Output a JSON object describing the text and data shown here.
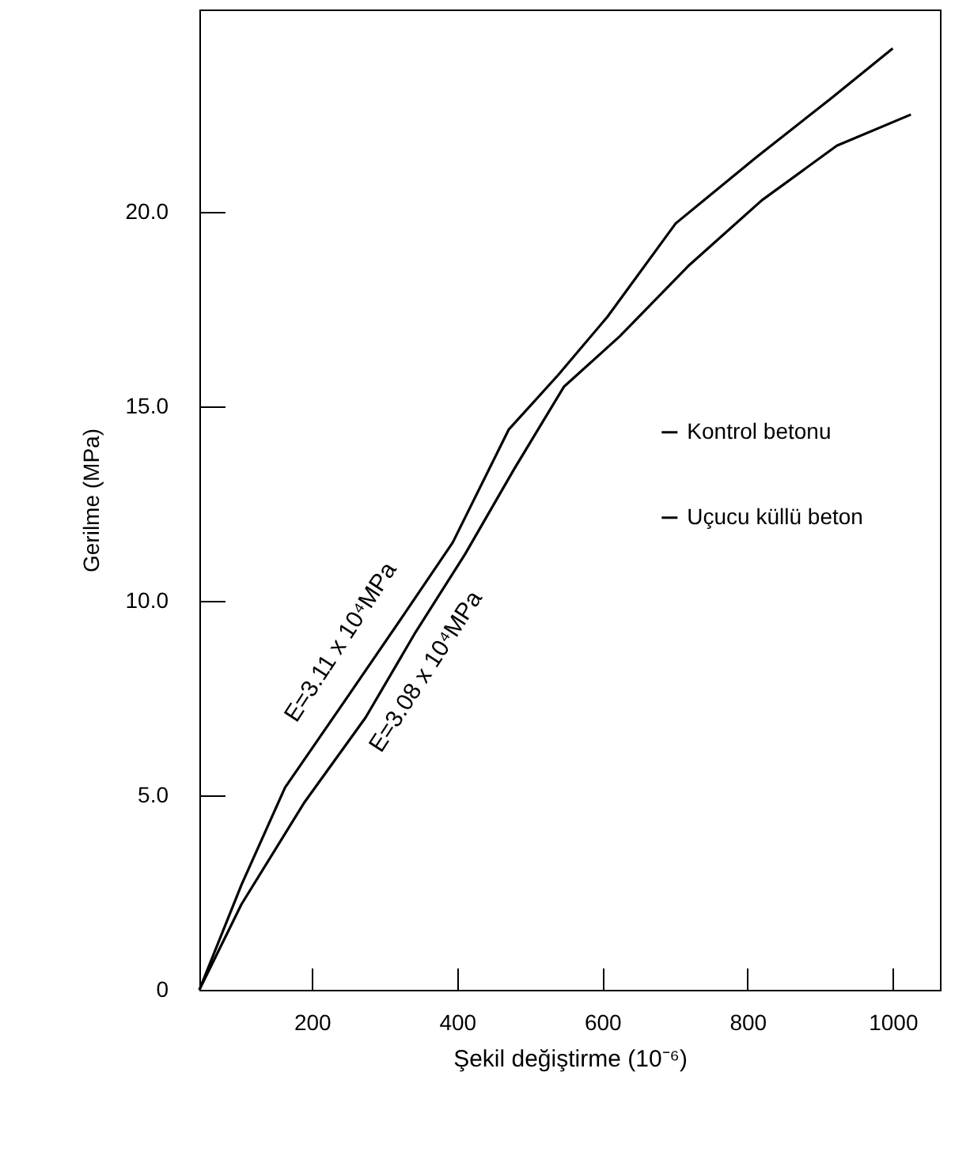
{
  "chart_data": {
    "type": "line",
    "xlabel": "Şekil değiştirme  (10⁻⁶)",
    "ylabel": "Gerilme (MPa)",
    "xlim": [
      45,
      1065
    ],
    "ylim": [
      0,
      25.2
    ],
    "xticks": [
      200,
      400,
      600,
      800,
      1000
    ],
    "yticks": [
      0,
      {
        "value": 5,
        "label": "5.0"
      },
      {
        "value": 10,
        "label": "10.0"
      },
      {
        "value": 15,
        "label": "15.0"
      },
      {
        "value": 20,
        "label": "20.0"
      }
    ],
    "legend": "right",
    "series": [
      {
        "name": "Kontrol betonu",
        "color": "#000000",
        "x": [
          45,
          103,
          163,
          248,
          325,
          394,
          471,
          539,
          607,
          701,
          812,
          914,
          1000
        ],
        "values": [
          0,
          2.7,
          5.2,
          7.5,
          9.6,
          11.5,
          14.4,
          15.8,
          17.3,
          19.7,
          21.4,
          22.9,
          24.2
        ]
      },
      {
        "name": "Uçucu küllü beton",
        "color": "#000000",
        "x": [
          45,
          103,
          189,
          274,
          343,
          411,
          479,
          547,
          624,
          718,
          820,
          923,
          1025
        ],
        "values": [
          0,
          2.2,
          4.8,
          7.0,
          9.2,
          11.2,
          13.4,
          15.5,
          16.8,
          18.6,
          20.3,
          21.7,
          22.5
        ]
      }
    ],
    "annotations": [
      "E=3.11 x 10⁴MPa",
      "E=3.08 x 10⁴MPa"
    ]
  }
}
